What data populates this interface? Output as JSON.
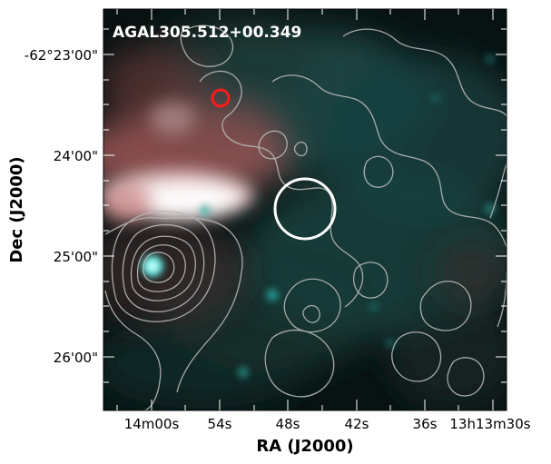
{
  "figure": {
    "source_name": "AGAL305.512+00.349",
    "x_axis": {
      "title": "RA (J2000)",
      "tick_labels": [
        "14m00s",
        "54s",
        "48s",
        "42s",
        "36s",
        "13h13m30s"
      ]
    },
    "y_axis": {
      "title": "Dec (J2000)",
      "tick_labels": [
        "-62°23'00\"",
        "24'00\"",
        "25'00\"",
        "26'00\""
      ]
    },
    "markers": [
      {
        "name": "red-circle-marker",
        "color": "#ff1a1a"
      },
      {
        "name": "white-circle-marker",
        "color": "#ffffff"
      }
    ],
    "colors": {
      "background": "#0a1414",
      "contour": "#b4b4b4",
      "dust_emission": "#b46464",
      "infrared_cyan": "#3cd2c8",
      "peak_core": "#ffffff"
    }
  }
}
